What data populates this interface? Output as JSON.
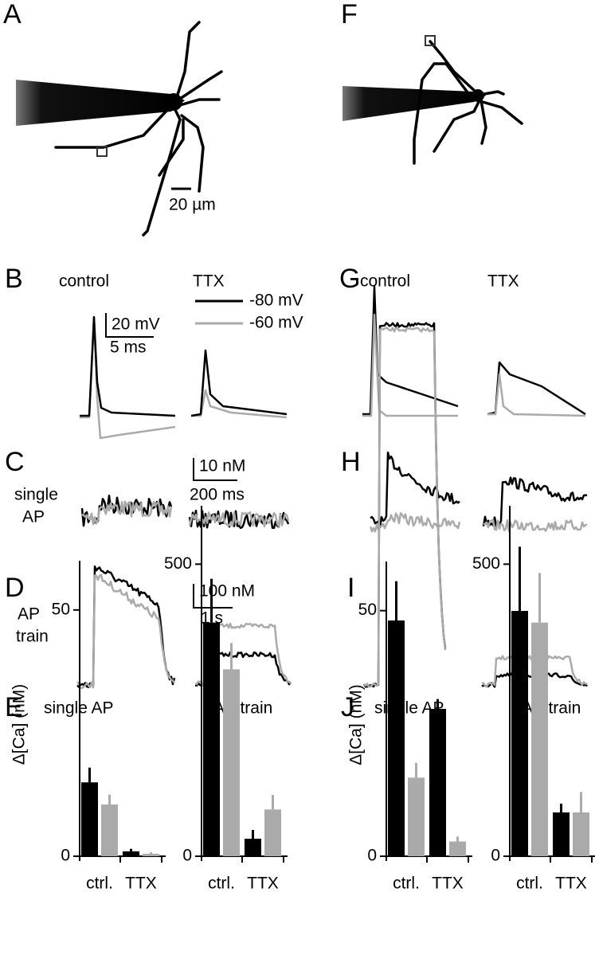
{
  "panels": {
    "a": "A",
    "b": "B",
    "c": "C",
    "d": "D",
    "e": "E",
    "f": "F",
    "g": "G",
    "h": "H",
    "i": "I",
    "j": "J"
  },
  "labels": {
    "scale_um": "20 µm",
    "control_b": "control",
    "ttx_b": "TTX",
    "control_g": "control",
    "ttx_g": "TTX",
    "scale_mv": "20 mV",
    "scale_ms": "5 ms",
    "single_c": "single",
    "ap_c": "AP",
    "scale_10nm": "10 nM",
    "scale_200ms": "200 ms",
    "ap_d": "AP",
    "train_d": "train",
    "scale_100nm": "100 nM",
    "scale_1s": "1 s",
    "single_ap_e": "single  AP",
    "ap_train_e": "AP train",
    "single_ap_j": "single  AP",
    "ap_train_j": "AP train"
  },
  "legend": [
    {
      "name": "-80 mV",
      "color": "#000000"
    },
    {
      "name": "-60 mV",
      "color": "#aaaaaa"
    }
  ],
  "chart_data": [
    {
      "type": "bar",
      "ylabel": "Δ[Ca] (nM)",
      "categories": [
        "ctrl.",
        "TTX"
      ],
      "ylim": [
        0,
        60
      ],
      "yticks": [
        0,
        50
      ],
      "series": [
        {
          "color": "#000000",
          "values": [
            15,
            1
          ],
          "errors": [
            3,
            0.5
          ]
        },
        {
          "color": "#aaaaaa",
          "values": [
            10.5,
            0.5
          ],
          "errors": [
            2,
            0.3
          ]
        }
      ]
    },
    {
      "type": "bar",
      "categories": [
        "ctrl.",
        "TTX"
      ],
      "ylim": [
        0,
        600
      ],
      "yticks": [
        0,
        500
      ],
      "series": [
        {
          "color": "#000000",
          "values": [
            400,
            30
          ],
          "errors": [
            75,
            15
          ]
        },
        {
          "color": "#aaaaaa",
          "values": [
            320,
            80
          ],
          "errors": [
            45,
            25
          ]
        }
      ]
    },
    {
      "type": "bar",
      "ylabel": "Δ[Ca] (nM)",
      "categories": [
        "ctrl.",
        "TTX"
      ],
      "ylim": [
        0,
        60
      ],
      "yticks": [
        0,
        50
      ],
      "series": [
        {
          "color": "#000000",
          "values": [
            48,
            30
          ],
          "errors": [
            8,
            2
          ]
        },
        {
          "color": "#aaaaaa",
          "values": [
            16,
            3
          ],
          "errors": [
            3,
            1
          ]
        }
      ]
    },
    {
      "type": "bar",
      "categories": [
        "ctrl.",
        "TTX"
      ],
      "ylim": [
        0,
        600
      ],
      "yticks": [
        0,
        500
      ],
      "series": [
        {
          "color": "#000000",
          "values": [
            420,
            75
          ],
          "errors": [
            110,
            15
          ]
        },
        {
          "color": "#aaaaaa",
          "values": [
            400,
            75
          ],
          "errors": [
            85,
            35
          ]
        }
      ]
    }
  ]
}
